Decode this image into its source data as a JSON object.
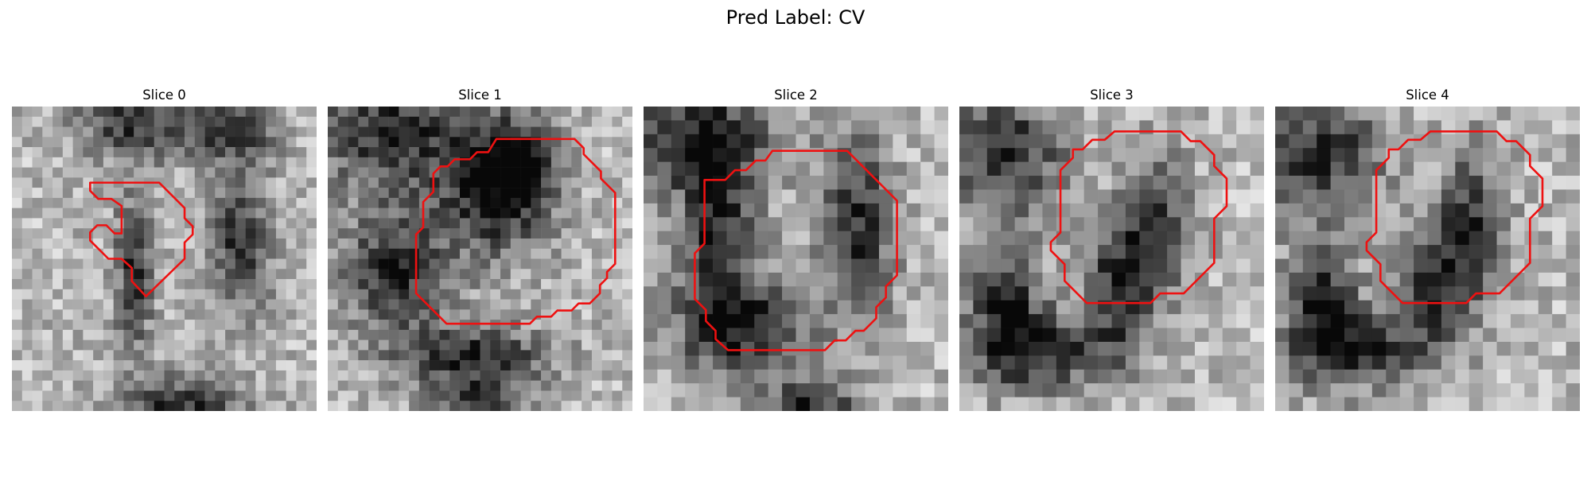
{
  "figure": {
    "title": "Pred Label: CV"
  },
  "panels": [
    {
      "title": "Slice 0",
      "dark_blobs": [
        [
          0.4,
          0.03,
          0.18,
          0.14
        ],
        [
          0.72,
          0.08,
          0.14,
          0.1
        ],
        [
          0.4,
          0.55,
          0.06,
          0.25
        ],
        [
          0.55,
          1.0,
          0.2,
          0.12
        ],
        [
          0.75,
          0.45,
          0.1,
          0.22
        ]
      ],
      "contour": [
        [
          9.5,
          7.5
        ],
        [
          14.5,
          7.5
        ],
        [
          17,
          10
        ],
        [
          17,
          11
        ],
        [
          17.8,
          11.8
        ],
        [
          17.8,
          12.6
        ],
        [
          17,
          13.4
        ],
        [
          17,
          15
        ],
        [
          13.2,
          18.7
        ],
        [
          11.8,
          17.2
        ],
        [
          11.8,
          15.9
        ],
        [
          10.8,
          15
        ],
        [
          9.5,
          15
        ],
        [
          7.7,
          13.2
        ],
        [
          7.7,
          12.4
        ],
        [
          8.4,
          11.7
        ],
        [
          9.3,
          11.7
        ],
        [
          10.1,
          12.5
        ],
        [
          10.8,
          12.5
        ],
        [
          10.8,
          9.8
        ],
        [
          9.8,
          9.1
        ],
        [
          8.5,
          9.1
        ],
        [
          7.7,
          8.3
        ],
        [
          7.7,
          7.5
        ]
      ]
    },
    {
      "title": "Slice 1",
      "dark_blobs": [
        [
          0.22,
          0.08,
          0.28,
          0.2
        ],
        [
          0.55,
          0.3,
          0.18,
          0.2
        ],
        [
          0.62,
          0.18,
          0.12,
          0.14
        ],
        [
          0.22,
          0.55,
          0.18,
          0.2
        ],
        [
          0.48,
          0.82,
          0.25,
          0.1
        ],
        [
          0.5,
          1.0,
          0.15,
          0.1
        ]
      ],
      "contour": [
        [
          16.6,
          3.2
        ],
        [
          24.3,
          3.2
        ],
        [
          25.2,
          4.1
        ],
        [
          25.2,
          4.7
        ],
        [
          26.9,
          6.4
        ],
        [
          26.9,
          7.1
        ],
        [
          28.3,
          8.5
        ],
        [
          28.3,
          15.5
        ],
        [
          27.5,
          16.3
        ],
        [
          27.5,
          16.9
        ],
        [
          26.8,
          17.6
        ],
        [
          26.8,
          18.4
        ],
        [
          25.8,
          19.4
        ],
        [
          24.7,
          19.4
        ],
        [
          24,
          20.1
        ],
        [
          22.6,
          20.1
        ],
        [
          22,
          20.7
        ],
        [
          20.6,
          20.7
        ],
        [
          19.9,
          21.4
        ],
        [
          13.4,
          21.4
        ],
        [
          11.7,
          21.4
        ],
        [
          8.7,
          18.4
        ],
        [
          8.7,
          12.6
        ],
        [
          9.4,
          11.9
        ],
        [
          9.4,
          9.4
        ],
        [
          10.4,
          8.4
        ],
        [
          10.4,
          6.6
        ],
        [
          11.1,
          5.9
        ],
        [
          11.8,
          5.9
        ],
        [
          12.5,
          5.2
        ],
        [
          14,
          5.2
        ],
        [
          14.7,
          4.5
        ],
        [
          15.8,
          4.5
        ]
      ]
    },
    {
      "title": "Slice 2",
      "dark_blobs": [
        [
          0.18,
          0.1,
          0.25,
          0.2
        ],
        [
          0.25,
          0.45,
          0.12,
          0.28
        ],
        [
          0.32,
          0.72,
          0.22,
          0.14
        ],
        [
          0.7,
          0.4,
          0.12,
          0.3
        ],
        [
          0.55,
          1.0,
          0.15,
          0.12
        ]
      ],
      "contour": [
        [
          9.3,
          3.2
        ],
        [
          14.7,
          3.2
        ],
        [
          18.3,
          6.8
        ],
        [
          18.3,
          12.2
        ],
        [
          17.5,
          13
        ],
        [
          17.5,
          13.8
        ],
        [
          16.8,
          14.5
        ],
        [
          16.8,
          15.3
        ],
        [
          15.9,
          16.2
        ],
        [
          15.3,
          16.2
        ],
        [
          14.6,
          16.9
        ],
        [
          13.8,
          16.9
        ],
        [
          13.1,
          17.6
        ],
        [
          8.4,
          17.6
        ],
        [
          8.4,
          17.6
        ],
        [
          6.1,
          17.6
        ],
        [
          5.2,
          16.8
        ],
        [
          5.2,
          16.2
        ],
        [
          4.5,
          15.5
        ],
        [
          4.5,
          14.7
        ],
        [
          3.7,
          13.9
        ],
        [
          3.7,
          10.6
        ],
        [
          4.4,
          9.9
        ],
        [
          4.4,
          5.3
        ],
        [
          5.9,
          5.3
        ],
        [
          6.6,
          4.6
        ],
        [
          7.4,
          4.6
        ],
        [
          8.1,
          3.9
        ],
        [
          8.8,
          3.9
        ]
      ]
    },
    {
      "title": "Slice 3",
      "dark_blobs": [
        [
          0.15,
          0.15,
          0.2,
          0.2
        ],
        [
          0.15,
          0.65,
          0.12,
          0.22
        ],
        [
          0.3,
          0.8,
          0.22,
          0.12
        ],
        [
          0.52,
          0.58,
          0.1,
          0.2
        ],
        [
          0.65,
          0.4,
          0.1,
          0.25
        ]
      ],
      "contour": [
        [
          11.2,
          1.8
        ],
        [
          16,
          1.8
        ],
        [
          16.7,
          2.5
        ],
        [
          17.4,
          2.5
        ],
        [
          18.4,
          3.5
        ],
        [
          18.4,
          4.3
        ],
        [
          19.3,
          5.2
        ],
        [
          19.3,
          7.2
        ],
        [
          18.4,
          8.1
        ],
        [
          18.4,
          11.3
        ],
        [
          16.2,
          13.5
        ],
        [
          14.5,
          13.5
        ],
        [
          13.8,
          14.2
        ],
        [
          9.2,
          14.2
        ],
        [
          7.6,
          12.6
        ],
        [
          7.6,
          11.4
        ],
        [
          6.6,
          10.4
        ],
        [
          6.6,
          9.8
        ],
        [
          7.3,
          9.1
        ],
        [
          7.3,
          4.6
        ],
        [
          8.2,
          3.7
        ],
        [
          8.2,
          3.1
        ],
        [
          8.9,
          3.1
        ],
        [
          9.6,
          2.4
        ],
        [
          10.5,
          2.4
        ]
      ]
    },
    {
      "title": "Slice 4",
      "dark_blobs": [
        [
          0.15,
          0.15,
          0.2,
          0.2
        ],
        [
          0.15,
          0.65,
          0.12,
          0.22
        ],
        [
          0.3,
          0.8,
          0.22,
          0.12
        ],
        [
          0.52,
          0.58,
          0.1,
          0.2
        ],
        [
          0.65,
          0.4,
          0.1,
          0.25
        ]
      ],
      "contour": [
        [
          11.2,
          1.8
        ],
        [
          16,
          1.8
        ],
        [
          16.7,
          2.5
        ],
        [
          17.4,
          2.5
        ],
        [
          18.4,
          3.5
        ],
        [
          18.4,
          4.3
        ],
        [
          19.3,
          5.2
        ],
        [
          19.3,
          7.2
        ],
        [
          18.4,
          8.1
        ],
        [
          18.4,
          11.3
        ],
        [
          16.2,
          13.5
        ],
        [
          14.5,
          13.5
        ],
        [
          13.8,
          14.2
        ],
        [
          9.2,
          14.2
        ],
        [
          7.6,
          12.6
        ],
        [
          7.6,
          11.4
        ],
        [
          6.6,
          10.4
        ],
        [
          6.6,
          9.8
        ],
        [
          7.3,
          9.1
        ],
        [
          7.3,
          4.6
        ],
        [
          8.2,
          3.7
        ],
        [
          8.2,
          3.1
        ],
        [
          8.9,
          3.1
        ],
        [
          9.6,
          2.4
        ],
        [
          10.5,
          2.4
        ]
      ]
    }
  ],
  "style": {
    "contour_color": "#ee1111"
  }
}
